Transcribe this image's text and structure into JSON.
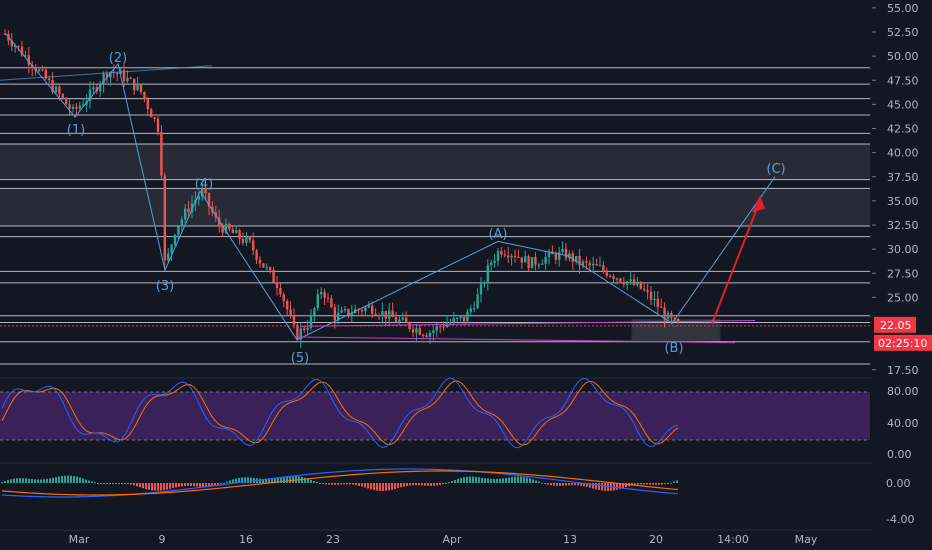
{
  "chart_data": {
    "type": "candlestick",
    "title": "",
    "price_axis": {
      "ticks": [
        "55.00",
        "52.50",
        "50.00",
        "47.50",
        "45.00",
        "42.50",
        "40.00",
        "37.50",
        "35.00",
        "32.50",
        "30.00",
        "27.50",
        "25.00",
        "17.50"
      ],
      "ylim": [
        17.5,
        55.0
      ],
      "current_price": "22.05",
      "countdown": "02:25:10",
      "current_price_color": "#f23645"
    },
    "time_axis": {
      "labels": [
        "Mar",
        "9",
        "16",
        "23",
        "Apr",
        "13",
        "20",
        "14:00",
        "May"
      ]
    },
    "stoch_axis": {
      "ticks": [
        "80.00",
        "40.00",
        "0.00"
      ],
      "bands": [
        20,
        80
      ]
    },
    "macd_axis": {
      "ticks": [
        "0.00",
        "-4.00"
      ]
    },
    "wave_labels": [
      {
        "text": "(1)",
        "price": 43.0
      },
      {
        "text": "(2)",
        "price": 51.5
      },
      {
        "text": "(3)",
        "price": 26.0
      },
      {
        "text": "(4)",
        "price": 37.0
      },
      {
        "text": "(5)",
        "price": 19.0
      },
      {
        "text": "(A)",
        "price": 31.5
      },
      {
        "text": "(B)",
        "price": 19.5
      },
      {
        "text": "(C)",
        "price": 38.5
      }
    ],
    "horizontal_levels": [
      48.8,
      47.1,
      45.6,
      43.9,
      42.0,
      40.9,
      37.2,
      36.3,
      32.4,
      31.3,
      27.7,
      26.5,
      23.1,
      22.4,
      20.4,
      18.1
    ],
    "shaded_zones": [
      [
        37.2,
        40.9
      ],
      [
        32.4,
        36.3
      ]
    ],
    "colors": {
      "up": "#26a69a",
      "down": "#ef5350",
      "wave_line": "#5b9cd6",
      "trendline": "#c243c2",
      "stoch_band": "#5b2a86",
      "forecast_arrow": "#e0202a",
      "stoch_k": "#2962ff",
      "stoch_d": "#ff6d00"
    }
  }
}
